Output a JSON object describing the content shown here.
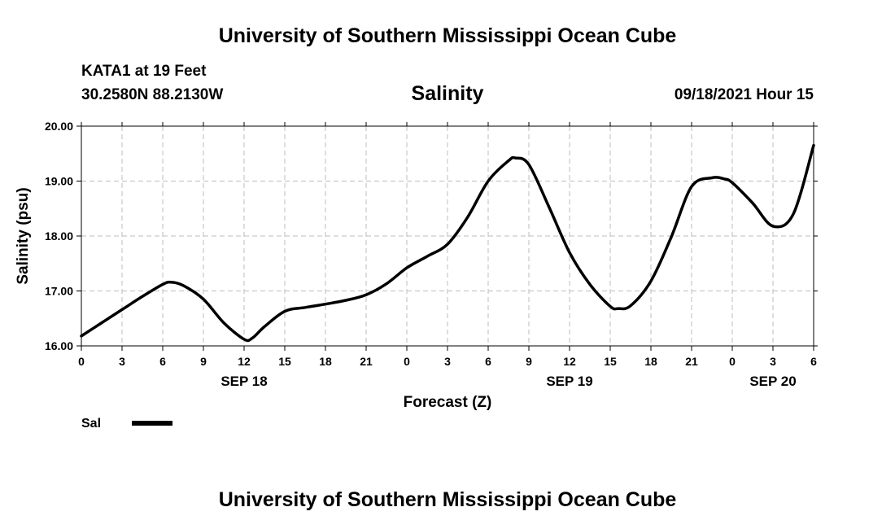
{
  "header": {
    "title": "University of Southern Mississippi Ocean Cube",
    "station": "KATA1 at 19 Feet",
    "coords": "30.2580N  88.2130W",
    "variable": "Salinity",
    "datetime": "09/18/2021 Hour 15"
  },
  "footer": {
    "title": "University of Southern Mississippi Ocean Cube"
  },
  "chart_data": {
    "type": "line",
    "title": "Salinity",
    "xlabel": "Forecast (Z)",
    "ylabel": "Salinity (psu)",
    "xlim": [
      0,
      54
    ],
    "ylim": [
      16.0,
      20.0
    ],
    "x_ticks": [
      0,
      3,
      6,
      9,
      12,
      15,
      18,
      21,
      24,
      27,
      30,
      33,
      36,
      39,
      42,
      45,
      48,
      51,
      54
    ],
    "x_tick_labels": [
      "0",
      "3",
      "6",
      "9",
      "12",
      "15",
      "18",
      "21",
      "0",
      "3",
      "6",
      "9",
      "12",
      "15",
      "18",
      "21",
      "0",
      "3",
      "6"
    ],
    "y_ticks": [
      16.0,
      17.0,
      18.0,
      19.0,
      20.0
    ],
    "y_tick_labels": [
      "16.00",
      "17.00",
      "18.00",
      "19.00",
      "20.00"
    ],
    "date_labels": [
      {
        "x": 12,
        "label": "SEP 18"
      },
      {
        "x": 36,
        "label": "SEP 19"
      },
      {
        "x": 51,
        "label": "SEP 20"
      }
    ],
    "grid": true,
    "legend": {
      "position": "bottom-left",
      "label": "Sal"
    },
    "series": [
      {
        "name": "Sal",
        "color": "#000000",
        "x": [
          0,
          1.5,
          3,
          4.5,
          6,
          6.6,
          7.5,
          9,
          10.5,
          12,
          12.6,
          13.5,
          15,
          16.5,
          18,
          19.5,
          21,
          22.5,
          24,
          25.5,
          27,
          28.5,
          30,
          31.5,
          32,
          33,
          34.5,
          36,
          37.5,
          39,
          39.6,
          40.5,
          42,
          43.5,
          45,
          46.5,
          47.4,
          48,
          49.5,
          51,
          52.5,
          54
        ],
        "values": [
          16.18,
          16.42,
          16.66,
          16.9,
          17.12,
          17.16,
          17.1,
          16.85,
          16.42,
          16.12,
          16.14,
          16.35,
          16.63,
          16.7,
          16.76,
          16.83,
          16.93,
          17.13,
          17.42,
          17.63,
          17.85,
          18.35,
          19.0,
          19.37,
          19.42,
          19.3,
          18.52,
          17.7,
          17.12,
          16.72,
          16.68,
          16.73,
          17.18,
          17.98,
          18.9,
          19.06,
          19.04,
          18.97,
          18.6,
          18.18,
          18.4,
          19.65
        ]
      }
    ]
  }
}
